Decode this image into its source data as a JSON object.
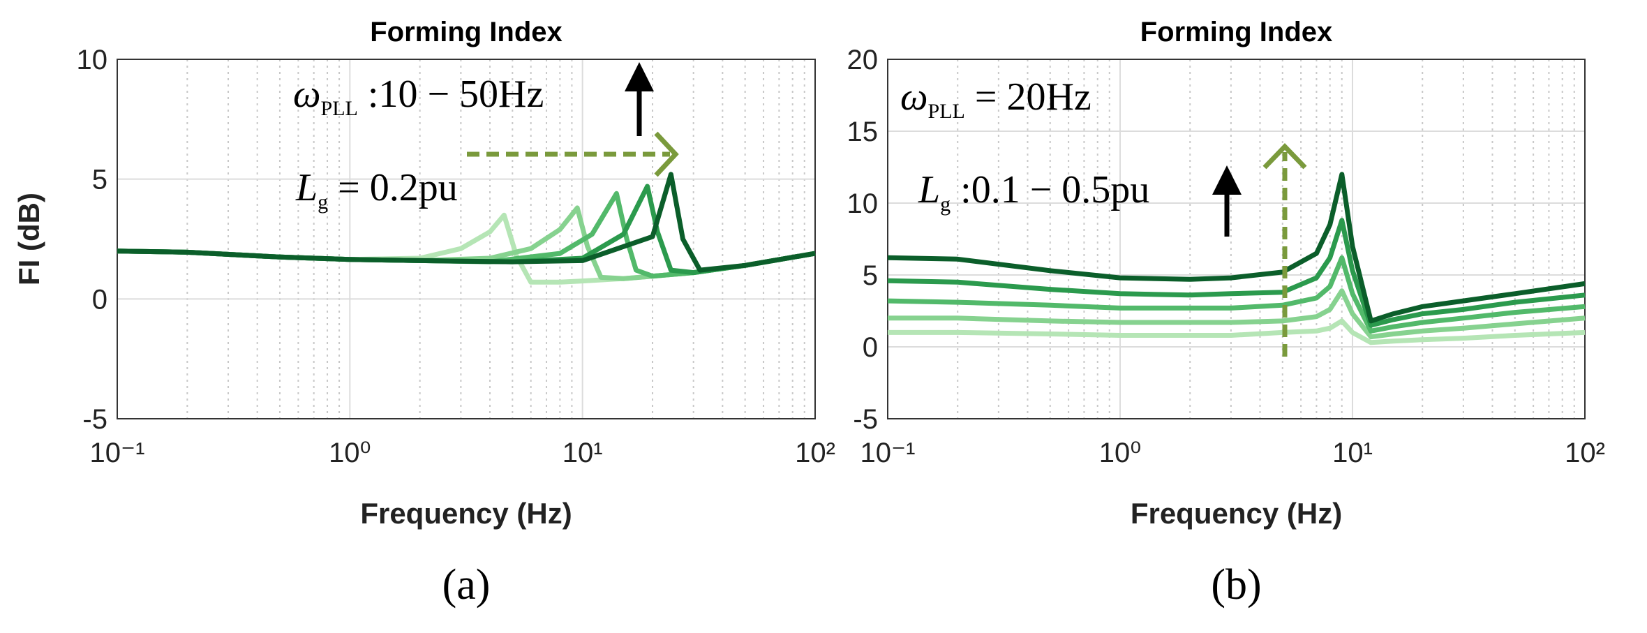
{
  "chart_data": [
    {
      "type": "line",
      "title": "Forming Index",
      "xlabel": "Frequency (Hz)",
      "ylabel": "FI (dB)",
      "caption": "(a)",
      "log_x": true,
      "grid": true,
      "xlim": [
        0.1,
        100
      ],
      "ylim": [
        -5,
        10
      ],
      "xticks": [
        {
          "value": 0.1,
          "label": "10⁻¹"
        },
        {
          "value": 1,
          "label": "10⁰"
        },
        {
          "value": 10,
          "label": "10¹"
        },
        {
          "value": 100,
          "label": "10²"
        }
      ],
      "yticks": [
        -5,
        0,
        5,
        10
      ],
      "annotations": [
        {
          "symbol": "ω",
          "subscript": "PLL",
          "text": " :10 − 50Hz"
        },
        {
          "symbol": "L",
          "subscript": "g",
          "text": " = 0.2pu"
        }
      ],
      "series": [
        {
          "color": "#b5e5b5",
          "x": [
            0.1,
            0.2,
            0.5,
            1,
            2,
            3,
            4,
            4.6,
            5.2,
            6,
            8,
            10,
            15,
            20,
            30,
            50,
            100
          ],
          "values": [
            2.0,
            1.95,
            1.75,
            1.65,
            1.7,
            2.1,
            2.8,
            3.5,
            1.8,
            0.7,
            0.7,
            0.75,
            0.85,
            0.95,
            1.1,
            1.4,
            1.9
          ]
        },
        {
          "color": "#86d28f",
          "x": [
            0.1,
            0.2,
            0.5,
            1,
            2,
            4,
            6,
            8,
            9.5,
            10.5,
            12,
            15,
            20,
            30,
            50,
            100
          ],
          "values": [
            2.0,
            1.95,
            1.75,
            1.65,
            1.6,
            1.7,
            2.1,
            2.9,
            3.8,
            2.2,
            0.9,
            0.85,
            0.95,
            1.1,
            1.4,
            1.9
          ]
        },
        {
          "color": "#52b96a",
          "x": [
            0.1,
            0.2,
            0.5,
            1,
            2,
            4,
            8,
            11,
            14,
            15.5,
            17,
            20,
            30,
            50,
            100
          ],
          "values": [
            2.0,
            1.95,
            1.75,
            1.65,
            1.6,
            1.55,
            1.9,
            2.7,
            4.4,
            2.5,
            1.2,
            0.95,
            1.1,
            1.4,
            1.9
          ]
        },
        {
          "color": "#2b9a4d",
          "x": [
            0.1,
            0.2,
            0.5,
            1,
            2,
            5,
            10,
            15,
            19,
            21,
            24,
            30,
            50,
            100
          ],
          "values": [
            2.0,
            1.95,
            1.75,
            1.65,
            1.6,
            1.55,
            1.7,
            2.7,
            4.7,
            2.8,
            1.2,
            1.1,
            1.4,
            1.9
          ]
        },
        {
          "color": "#0b5e2a",
          "x": [
            0.1,
            0.2,
            0.5,
            1,
            2,
            5,
            10,
            20,
            24,
            27,
            32,
            50,
            100
          ],
          "values": [
            2.0,
            1.95,
            1.75,
            1.65,
            1.6,
            1.55,
            1.6,
            2.6,
            5.2,
            2.5,
            1.2,
            1.4,
            1.9
          ]
        }
      ]
    },
    {
      "type": "line",
      "title": "Forming Index",
      "xlabel": "Frequency (Hz)",
      "caption": "(b)",
      "log_x": true,
      "grid": true,
      "xlim": [
        0.1,
        100
      ],
      "ylim": [
        -5,
        20
      ],
      "xticks": [
        {
          "value": 0.1,
          "label": "10⁻¹"
        },
        {
          "value": 1,
          "label": "10⁰"
        },
        {
          "value": 10,
          "label": "10¹"
        },
        {
          "value": 100,
          "label": "10²"
        }
      ],
      "yticks": [
        -5,
        0,
        5,
        10,
        15,
        20
      ],
      "annotations": [
        {
          "symbol": "ω",
          "subscript": "PLL",
          "text": " = 20Hz"
        },
        {
          "symbol": "L",
          "subscript": "g",
          "text": " :0.1 − 0.5pu"
        }
      ],
      "series": [
        {
          "color": "#b5e5b5",
          "x": [
            0.1,
            0.2,
            0.5,
            1,
            2,
            3,
            5,
            7,
            8,
            9,
            10,
            12,
            15,
            20,
            30,
            50,
            100
          ],
          "values": [
            1.0,
            1.0,
            0.9,
            0.8,
            0.8,
            0.8,
            1.0,
            1.1,
            1.3,
            1.8,
            1.0,
            0.3,
            0.4,
            0.5,
            0.6,
            0.8,
            1.0
          ]
        },
        {
          "color": "#86d28f",
          "x": [
            0.1,
            0.2,
            0.5,
            1,
            2,
            3,
            5,
            7,
            8,
            9,
            10,
            12,
            15,
            20,
            30,
            50,
            100
          ],
          "values": [
            2.0,
            2.0,
            1.8,
            1.7,
            1.7,
            1.7,
            1.8,
            2.1,
            2.6,
            3.9,
            2.3,
            0.7,
            0.9,
            1.1,
            1.3,
            1.6,
            2.0
          ]
        },
        {
          "color": "#52b96a",
          "x": [
            0.1,
            0.2,
            0.5,
            1,
            2,
            3,
            5,
            7,
            8,
            9,
            10,
            12,
            15,
            20,
            30,
            50,
            100
          ],
          "values": [
            3.2,
            3.1,
            2.9,
            2.7,
            2.7,
            2.7,
            2.9,
            3.4,
            4.2,
            6.2,
            3.7,
            1.1,
            1.4,
            1.7,
            2.0,
            2.4,
            2.8
          ]
        },
        {
          "color": "#2b9a4d",
          "x": [
            0.1,
            0.2,
            0.5,
            1,
            2,
            3,
            5,
            7,
            8,
            9,
            10,
            12,
            15,
            20,
            30,
            50,
            100
          ],
          "values": [
            4.6,
            4.5,
            4.0,
            3.7,
            3.6,
            3.7,
            3.8,
            4.8,
            6.2,
            8.8,
            5.3,
            1.5,
            1.9,
            2.3,
            2.6,
            3.1,
            3.6
          ]
        },
        {
          "color": "#0b5e2a",
          "x": [
            0.1,
            0.2,
            0.5,
            1,
            2,
            3,
            5,
            7,
            8,
            9,
            10,
            12,
            15,
            20,
            30,
            50,
            100
          ],
          "values": [
            6.2,
            6.1,
            5.3,
            4.8,
            4.7,
            4.8,
            5.2,
            6.5,
            8.5,
            12.0,
            7.0,
            1.8,
            2.3,
            2.8,
            3.2,
            3.7,
            4.4
          ]
        }
      ]
    }
  ]
}
